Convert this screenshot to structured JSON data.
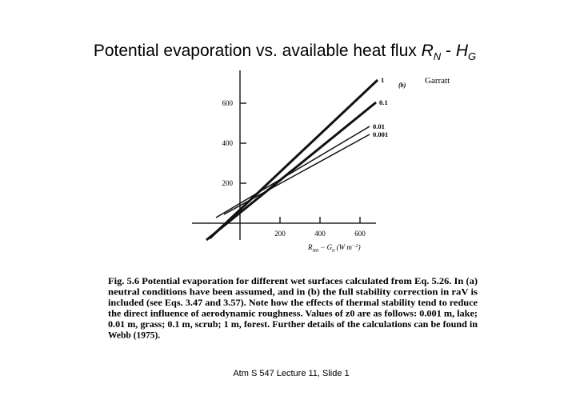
{
  "slide": {
    "title": {
      "text": "Potential evaporation vs. available heat flux",
      "symbol1": "R",
      "sub1": "N",
      "operator": "-",
      "symbol2": "H",
      "sub2": "G"
    },
    "caption": [
      "Fig. 5.6  Potential evaporation for different wet surfaces calculated from Eq. 5.26. In (a)",
      "neutral conditions have been assumed, and in (b) the full stability correction in raV is",
      "included (see Eqs. 3.47 and 3.57). Note how the effects of thermal stability tend to reduce",
      "the direct influence of aerodynamic roughness. Values of z0 are as follows: 0.001 m, lake;",
      "0.01 m, grass; 0.1 m, scrub; 1 m, forest. Further details of the calculations can be found in",
      "Webb (1975)."
    ],
    "footer": "Atm S 547  Lecture 11, Slide 1"
  },
  "chart_data": {
    "type": "line",
    "panel_label": "(b)",
    "source": "Garratt",
    "xlabel": {
      "symbol1": "R",
      "sub1": "N0",
      "operator": " − G",
      "sub2": "0",
      "unit": " (W m",
      "exp": "−2",
      "close": ")"
    },
    "xlim": [
      -240,
      680
    ],
    "ylim": [
      -84,
      764
    ],
    "xticks": [
      200,
      400,
      600
    ],
    "yticks": [
      200,
      400,
      600
    ],
    "series": [
      {
        "name": "1",
        "color": "#111111",
        "line_width": 3,
        "x": [
          -152,
          688
        ],
        "values": [
          -76,
          716
        ]
      },
      {
        "name": "0.1",
        "color": "#111111",
        "line_width": 3,
        "x": [
          -168,
          680
        ],
        "values": [
          -84,
          604
        ]
      },
      {
        "name": "0.01",
        "color": "#111111",
        "line_width": 1.5,
        "x": [
          -120,
          648
        ],
        "values": [
          28,
          484
        ]
      },
      {
        "name": "0.001",
        "color": "#111111",
        "line_width": 1.5,
        "x": [
          -80,
          648
        ],
        "values": [
          44,
          444
        ]
      }
    ]
  }
}
